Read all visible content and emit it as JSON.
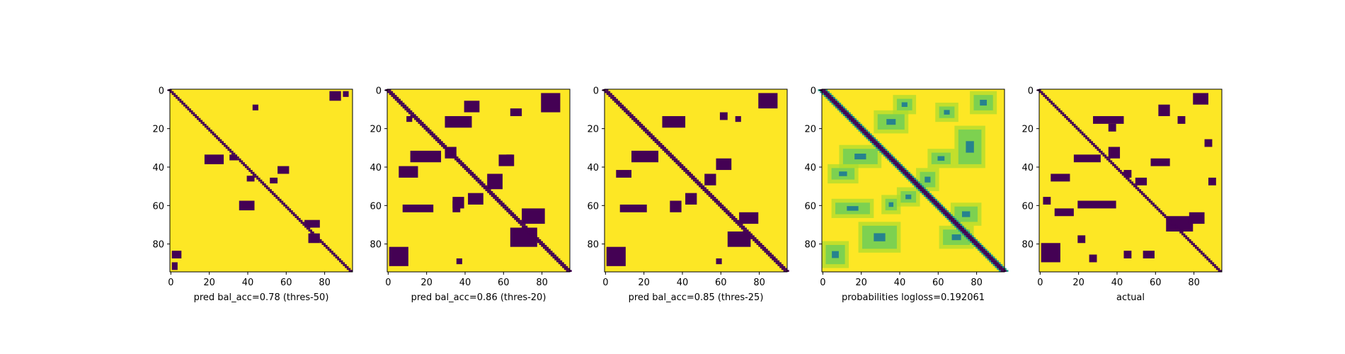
{
  "colors": {
    "high": "#fde725",
    "low": "#440154",
    "mid1": "#a8dc2f",
    "mid2": "#6ccd5a",
    "mid3": "#1f9e89",
    "mid4": "#26828e",
    "mid5": "#31688e"
  },
  "chart_data": [
    {
      "type": "heatmap",
      "title": "",
      "xlabel": "pred bal_acc=0.78 (thres-50)",
      "ylabel": "",
      "size": 95,
      "xticks": [
        0,
        20,
        40,
        60,
        80
      ],
      "yticks": [
        0,
        20,
        40,
        60,
        80
      ],
      "mode": "binary",
      "diagonal_width": 2,
      "blobs": [
        {
          "x": 18,
          "y": 34,
          "w": 10,
          "h": 5
        },
        {
          "x": 31,
          "y": 34,
          "w": 4,
          "h": 3
        },
        {
          "x": 40,
          "y": 45,
          "w": 4,
          "h": 3
        },
        {
          "x": 56,
          "y": 40,
          "w": 6,
          "h": 4
        },
        {
          "x": 52,
          "y": 46,
          "w": 4,
          "h": 3
        },
        {
          "x": 36,
          "y": 58,
          "w": 8,
          "h": 5
        },
        {
          "x": 70,
          "y": 68,
          "w": 8,
          "h": 4
        },
        {
          "x": 72,
          "y": 75,
          "w": 6,
          "h": 5
        },
        {
          "x": 1,
          "y": 84,
          "w": 5,
          "h": 4
        },
        {
          "x": 1,
          "y": 90,
          "w": 3,
          "h": 4
        },
        {
          "x": 83,
          "y": 1,
          "w": 6,
          "h": 5
        },
        {
          "x": 90,
          "y": 1,
          "w": 3,
          "h": 3
        },
        {
          "x": 43,
          "y": 8,
          "w": 3,
          "h": 3
        }
      ]
    },
    {
      "type": "heatmap",
      "title": "",
      "xlabel": "pred bal_acc=0.86 (thres-20)",
      "ylabel": "",
      "size": 95,
      "xticks": [
        0,
        20,
        40,
        60,
        80
      ],
      "yticks": [
        0,
        20,
        40,
        60,
        80
      ],
      "mode": "binary",
      "diagonal_width": 3,
      "blobs": [
        {
          "x": 12,
          "y": 32,
          "w": 16,
          "h": 6
        },
        {
          "x": 6,
          "y": 40,
          "w": 10,
          "h": 6
        },
        {
          "x": 30,
          "y": 30,
          "w": 6,
          "h": 6
        },
        {
          "x": 30,
          "y": 14,
          "w": 14,
          "h": 6
        },
        {
          "x": 40,
          "y": 6,
          "w": 8,
          "h": 6
        },
        {
          "x": 58,
          "y": 34,
          "w": 8,
          "h": 6
        },
        {
          "x": 52,
          "y": 44,
          "w": 8,
          "h": 8
        },
        {
          "x": 42,
          "y": 54,
          "w": 8,
          "h": 6
        },
        {
          "x": 34,
          "y": 58,
          "w": 4,
          "h": 6
        },
        {
          "x": 8,
          "y": 60,
          "w": 16,
          "h": 4
        },
        {
          "x": 34,
          "y": 56,
          "w": 6,
          "h": 6
        },
        {
          "x": 64,
          "y": 10,
          "w": 6,
          "h": 4
        },
        {
          "x": 80,
          "y": 2,
          "w": 10,
          "h": 10
        },
        {
          "x": 70,
          "y": 62,
          "w": 12,
          "h": 8
        },
        {
          "x": 64,
          "y": 72,
          "w": 14,
          "h": 10
        },
        {
          "x": 1,
          "y": 82,
          "w": 10,
          "h": 10
        },
        {
          "x": 36,
          "y": 88,
          "w": 3,
          "h": 3
        },
        {
          "x": 62,
          "y": 34,
          "w": 3,
          "h": 3
        },
        {
          "x": 10,
          "y": 14,
          "w": 3,
          "h": 3
        }
      ]
    },
    {
      "type": "heatmap",
      "title": "",
      "xlabel": "pred bal_acc=0.85 (thres-25)",
      "ylabel": "",
      "size": 95,
      "xticks": [
        0,
        20,
        40,
        60,
        80
      ],
      "yticks": [
        0,
        20,
        40,
        60,
        80
      ],
      "mode": "binary",
      "diagonal_width": 3,
      "blobs": [
        {
          "x": 14,
          "y": 32,
          "w": 14,
          "h": 6
        },
        {
          "x": 6,
          "y": 42,
          "w": 8,
          "h": 4
        },
        {
          "x": 30,
          "y": 14,
          "w": 12,
          "h": 6
        },
        {
          "x": 58,
          "y": 36,
          "w": 8,
          "h": 6
        },
        {
          "x": 52,
          "y": 44,
          "w": 6,
          "h": 6
        },
        {
          "x": 42,
          "y": 54,
          "w": 6,
          "h": 6
        },
        {
          "x": 34,
          "y": 58,
          "w": 6,
          "h": 6
        },
        {
          "x": 8,
          "y": 60,
          "w": 14,
          "h": 4
        },
        {
          "x": 60,
          "y": 12,
          "w": 4,
          "h": 4
        },
        {
          "x": 68,
          "y": 14,
          "w": 3,
          "h": 3
        },
        {
          "x": 80,
          "y": 2,
          "w": 10,
          "h": 8
        },
        {
          "x": 70,
          "y": 64,
          "w": 10,
          "h": 6
        },
        {
          "x": 64,
          "y": 74,
          "w": 12,
          "h": 8
        },
        {
          "x": 1,
          "y": 82,
          "w": 10,
          "h": 10
        },
        {
          "x": 58,
          "y": 88,
          "w": 3,
          "h": 3
        }
      ]
    },
    {
      "type": "heatmap",
      "title": "",
      "xlabel": "probabilities logloss=0.192061",
      "ylabel": "",
      "size": 95,
      "xticks": [
        0,
        20,
        40,
        60,
        80
      ],
      "yticks": [
        0,
        20,
        40,
        60,
        80
      ],
      "mode": "continuous",
      "diagonal_width": 3,
      "blobs": [
        {
          "x": 10,
          "y": 30,
          "w": 20,
          "h": 10
        },
        {
          "x": 4,
          "y": 40,
          "w": 14,
          "h": 8
        },
        {
          "x": 28,
          "y": 12,
          "w": 16,
          "h": 10
        },
        {
          "x": 38,
          "y": 4,
          "w": 10,
          "h": 8
        },
        {
          "x": 56,
          "y": 32,
          "w": 12,
          "h": 8
        },
        {
          "x": 50,
          "y": 42,
          "w": 10,
          "h": 10
        },
        {
          "x": 40,
          "y": 52,
          "w": 10,
          "h": 8
        },
        {
          "x": 32,
          "y": 56,
          "w": 8,
          "h": 8
        },
        {
          "x": 6,
          "y": 58,
          "w": 20,
          "h": 8
        },
        {
          "x": 60,
          "y": 8,
          "w": 10,
          "h": 8
        },
        {
          "x": 78,
          "y": 2,
          "w": 12,
          "h": 10
        },
        {
          "x": 68,
          "y": 60,
          "w": 14,
          "h": 10
        },
        {
          "x": 62,
          "y": 72,
          "w": 16,
          "h": 10
        },
        {
          "x": 1,
          "y": 80,
          "w": 12,
          "h": 12
        },
        {
          "x": 70,
          "y": 20,
          "w": 14,
          "h": 20
        },
        {
          "x": 20,
          "y": 70,
          "w": 20,
          "h": 14
        }
      ]
    },
    {
      "type": "heatmap",
      "title": "",
      "xlabel": "actual",
      "ylabel": "",
      "size": 95,
      "xticks": [
        0,
        20,
        40,
        60,
        80
      ],
      "yticks": [
        0,
        20,
        40,
        60,
        80
      ],
      "mode": "binary",
      "diagonal_width": 2,
      "blobs": [
        {
          "x": 18,
          "y": 34,
          "w": 14,
          "h": 4
        },
        {
          "x": 6,
          "y": 44,
          "w": 10,
          "h": 4
        },
        {
          "x": 28,
          "y": 14,
          "w": 16,
          "h": 4
        },
        {
          "x": 36,
          "y": 18,
          "w": 4,
          "h": 4
        },
        {
          "x": 36,
          "y": 30,
          "w": 6,
          "h": 6
        },
        {
          "x": 44,
          "y": 42,
          "w": 4,
          "h": 4
        },
        {
          "x": 58,
          "y": 36,
          "w": 10,
          "h": 4
        },
        {
          "x": 50,
          "y": 46,
          "w": 6,
          "h": 4
        },
        {
          "x": 20,
          "y": 58,
          "w": 20,
          "h": 4
        },
        {
          "x": 8,
          "y": 62,
          "w": 10,
          "h": 4
        },
        {
          "x": 62,
          "y": 8,
          "w": 6,
          "h": 6
        },
        {
          "x": 80,
          "y": 2,
          "w": 8,
          "h": 6
        },
        {
          "x": 72,
          "y": 14,
          "w": 4,
          "h": 4
        },
        {
          "x": 86,
          "y": 26,
          "w": 4,
          "h": 4
        },
        {
          "x": 88,
          "y": 46,
          "w": 4,
          "h": 4
        },
        {
          "x": 66,
          "y": 66,
          "w": 14,
          "h": 8
        },
        {
          "x": 78,
          "y": 64,
          "w": 8,
          "h": 6
        },
        {
          "x": 54,
          "y": 84,
          "w": 6,
          "h": 4
        },
        {
          "x": 1,
          "y": 80,
          "w": 10,
          "h": 10
        },
        {
          "x": 20,
          "y": 76,
          "w": 4,
          "h": 4
        },
        {
          "x": 26,
          "y": 86,
          "w": 4,
          "h": 4
        },
        {
          "x": 44,
          "y": 84,
          "w": 4,
          "h": 4
        },
        {
          "x": 2,
          "y": 56,
          "w": 4,
          "h": 4
        }
      ]
    }
  ]
}
